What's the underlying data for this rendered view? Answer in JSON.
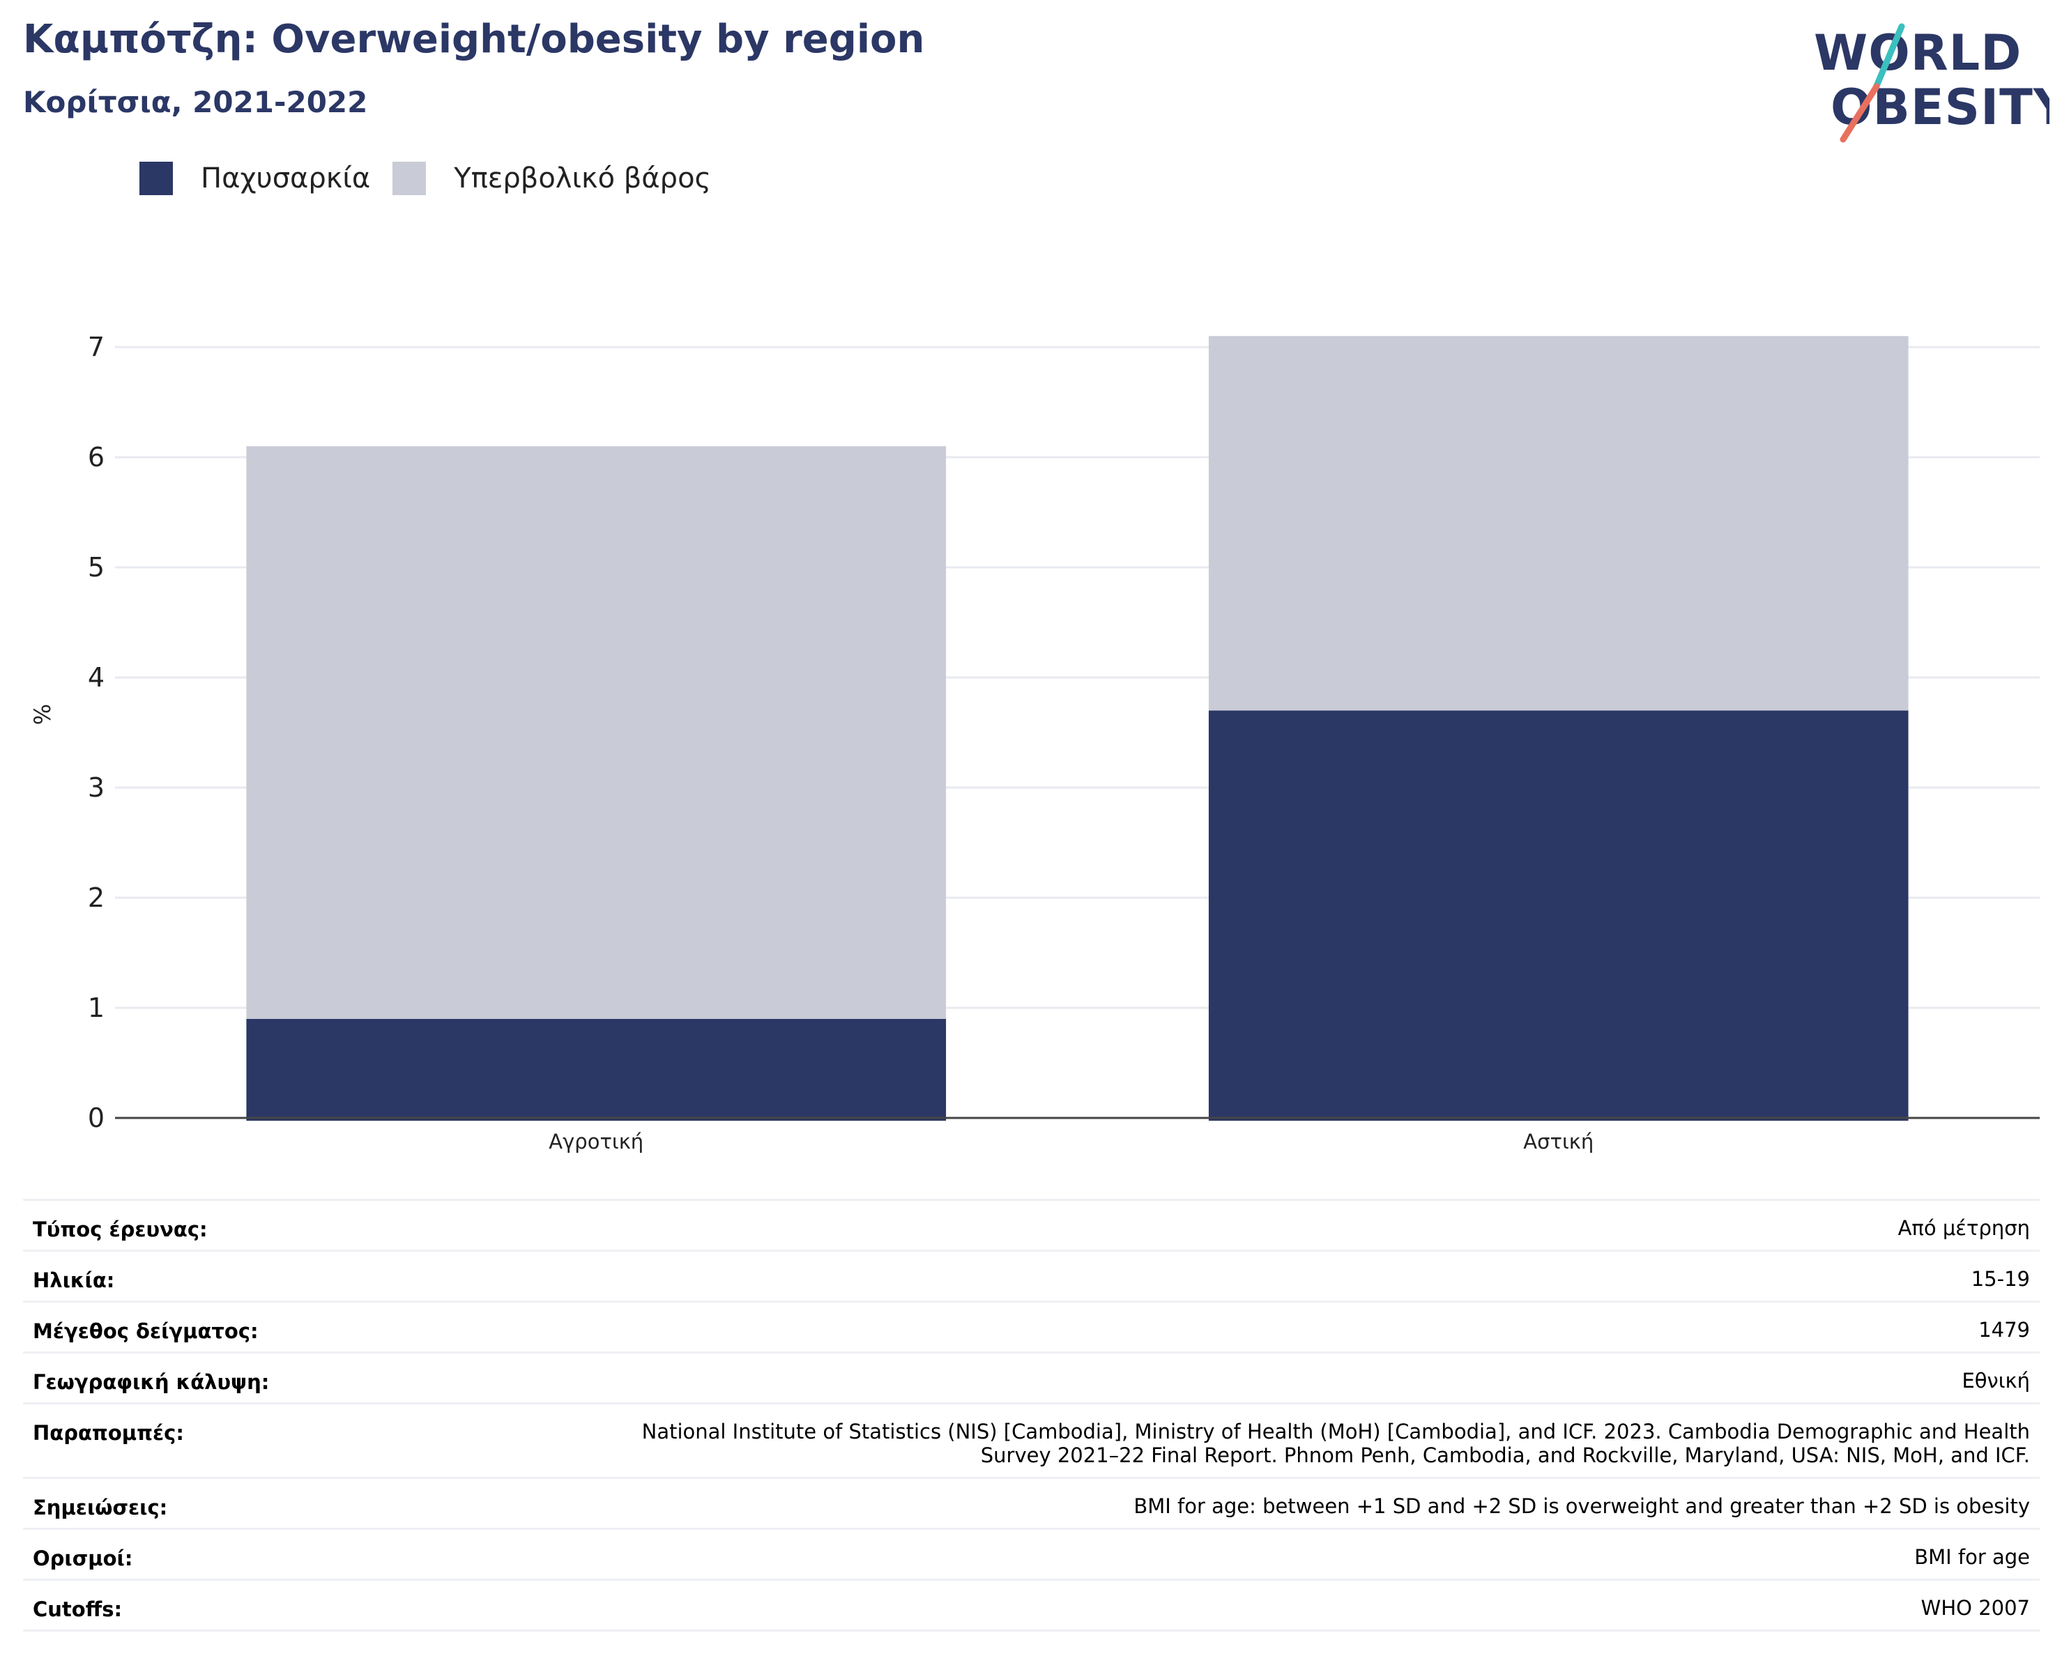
{
  "header": {
    "title": "Καμπότζη: Overweight/obesity by region",
    "subtitle": "Κορίτσια, 2021-2022"
  },
  "logo": {
    "line1": "WORLD",
    "line2": "OBESITY",
    "colors": {
      "text": "#2b3765",
      "slash_top": "#3bbfbf",
      "slash_bottom": "#e8705e"
    }
  },
  "legend": [
    {
      "label": "Παχυσαρκία",
      "color": "#2b3765"
    },
    {
      "label": "Υπερβολικό βάρος",
      "color": "#c9cbd6"
    }
  ],
  "chart_data": {
    "type": "bar",
    "stacked": true,
    "categories": [
      "Αγροτική",
      "Αστική"
    ],
    "series": [
      {
        "name": "Παχυσαρκία",
        "color": "#2b3765",
        "values": [
          0.9,
          3.7
        ]
      },
      {
        "name": "Υπερβολικό βάρος",
        "color": "#c9cbd6",
        "values": [
          5.2,
          3.4
        ]
      }
    ],
    "ylabel": "%",
    "ylim": [
      0,
      7
    ],
    "yticks": [
      0,
      1,
      2,
      3,
      4,
      5,
      6,
      7
    ],
    "grid": true,
    "legend_position": "top-left"
  },
  "info": [
    {
      "key": "Τύπος έρευνας:",
      "value": "Από μέτρηση"
    },
    {
      "key": "Ηλικία:",
      "value": "15-19"
    },
    {
      "key": "Μέγεθος δείγματος:",
      "value": "1479"
    },
    {
      "key": "Γεωγραφική κάλυψη:",
      "value": "Εθνική"
    },
    {
      "key": "Παραπομπές:",
      "value_lines": [
        "National Institute of Statistics (NIS) [Cambodia], Ministry of Health (MoH) [Cambodia], and ICF. 2023. Cambodia Demographic and Health",
        "Survey 2021–22 Final Report. Phnom Penh, Cambodia, and Rockville, Maryland, USA: NIS, MoH, and ICF."
      ]
    },
    {
      "key": "Σημειώσεις:",
      "value": "BMI for age: between +1 SD and +2 SD is overweight and greater than +2 SD is obesity"
    },
    {
      "key": "Ορισμοί:",
      "value": "BMI for age"
    },
    {
      "key": "Cutoffs:",
      "value": "WHO 2007"
    }
  ]
}
